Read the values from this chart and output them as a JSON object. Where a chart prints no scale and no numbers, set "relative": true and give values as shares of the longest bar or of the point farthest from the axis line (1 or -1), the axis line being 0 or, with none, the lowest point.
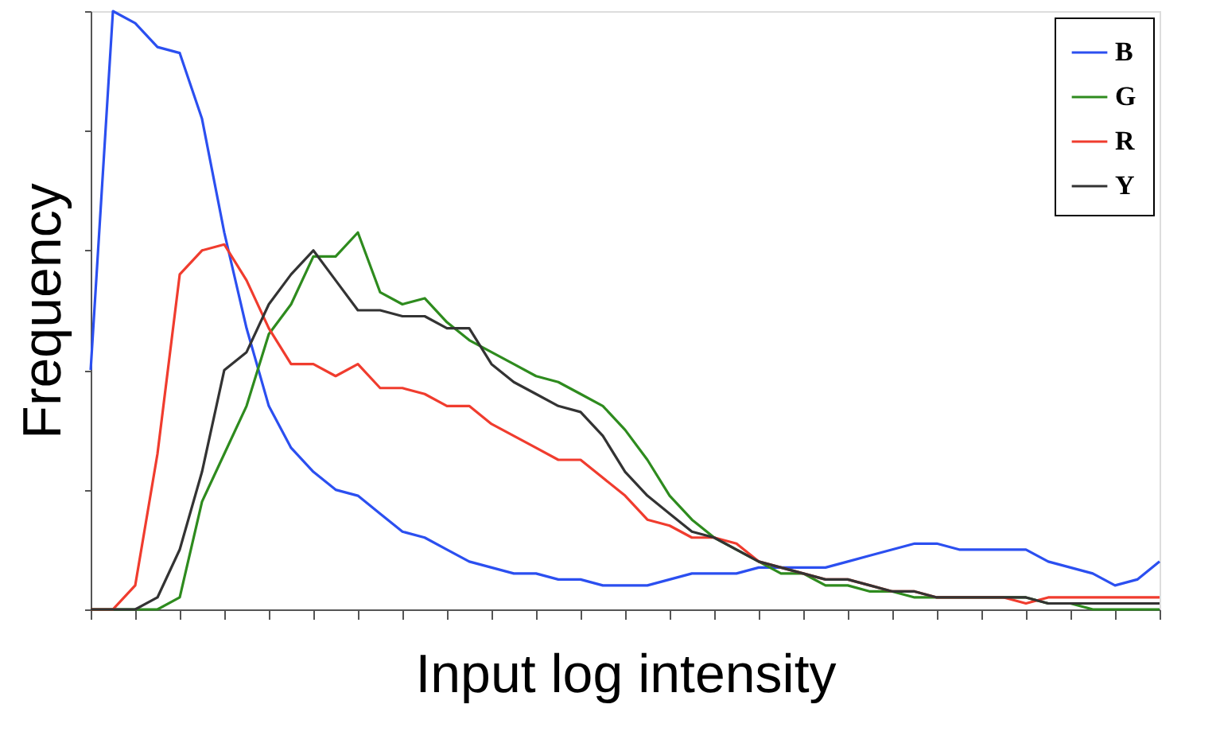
{
  "chart_data": {
    "type": "line",
    "relative": true,
    "xlabel": "Input log intensity",
    "ylabel": "Frequency",
    "legend": "top right",
    "grid": false,
    "marker": "none",
    "line_style": "solid",
    "categories": [
      null,
      null,
      null,
      null,
      null,
      null,
      null,
      null,
      null,
      null,
      null,
      null,
      null,
      null,
      null,
      null,
      null,
      null,
      null,
      null,
      null,
      null,
      null,
      null,
      null,
      null,
      null,
      null,
      null,
      null,
      null,
      null,
      null,
      null,
      null,
      null,
      null,
      null,
      null,
      null,
      null,
      null,
      null,
      null,
      null,
      null,
      null,
      null,
      null
    ],
    "series": [
      {
        "name": "B",
        "color": "#2b4ff0",
        "values": [
          0.4,
          1.0,
          0.98,
          0.94,
          0.93,
          0.82,
          0.63,
          0.47,
          0.34,
          0.27,
          0.23,
          0.2,
          0.19,
          0.16,
          0.13,
          0.12,
          0.1,
          0.08,
          0.07,
          0.06,
          0.06,
          0.05,
          0.05,
          0.04,
          0.04,
          0.04,
          0.05,
          0.06,
          0.06,
          0.06,
          0.07,
          0.07,
          0.07,
          0.07,
          0.08,
          0.09,
          0.1,
          0.11,
          0.11,
          0.1,
          0.1,
          0.1,
          0.1,
          0.08,
          0.07,
          0.06,
          0.04,
          0.05,
          0.08
        ]
      },
      {
        "name": "G",
        "color": "#2e8b1e",
        "values": [
          0,
          0,
          0,
          0,
          0.02,
          0.18,
          0.26,
          0.34,
          0.46,
          0.51,
          0.59,
          0.59,
          0.63,
          0.53,
          0.51,
          0.52,
          0.48,
          0.45,
          0.43,
          0.41,
          0.39,
          0.38,
          0.36,
          0.34,
          0.3,
          0.25,
          0.19,
          0.15,
          0.12,
          0.1,
          0.08,
          0.06,
          0.06,
          0.04,
          0.04,
          0.03,
          0.03,
          0.02,
          0.02,
          0.02,
          0.02,
          0.02,
          0.02,
          0.01,
          0.01,
          0,
          0,
          0,
          0
        ]
      },
      {
        "name": "R",
        "color": "#f03c2e",
        "values": [
          0,
          0,
          0.04,
          0.26,
          0.56,
          0.6,
          0.61,
          0.55,
          0.47,
          0.41,
          0.41,
          0.39,
          0.41,
          0.37,
          0.37,
          0.36,
          0.34,
          0.34,
          0.31,
          0.29,
          0.27,
          0.25,
          0.25,
          0.22,
          0.19,
          0.15,
          0.14,
          0.12,
          0.12,
          0.11,
          0.08,
          0.07,
          0.06,
          0.05,
          0.05,
          0.04,
          0.03,
          0.03,
          0.02,
          0.02,
          0.02,
          0.02,
          0.01,
          0.02,
          0.02,
          0.02,
          0.02,
          0.02,
          0.02
        ]
      },
      {
        "name": "Y",
        "color": "#333333",
        "values": [
          0,
          0,
          0,
          0.02,
          0.1,
          0.23,
          0.4,
          0.43,
          0.51,
          0.56,
          0.6,
          0.55,
          0.5,
          0.5,
          0.49,
          0.49,
          0.47,
          0.47,
          0.41,
          0.38,
          0.36,
          0.34,
          0.33,
          0.29,
          0.23,
          0.19,
          0.16,
          0.13,
          0.12,
          0.1,
          0.08,
          0.07,
          0.06,
          0.05,
          0.05,
          0.04,
          0.03,
          0.03,
          0.02,
          0.02,
          0.02,
          0.02,
          0.02,
          0.01,
          0.01,
          0.01,
          0.01,
          0.01,
          0.01
        ]
      }
    ]
  }
}
